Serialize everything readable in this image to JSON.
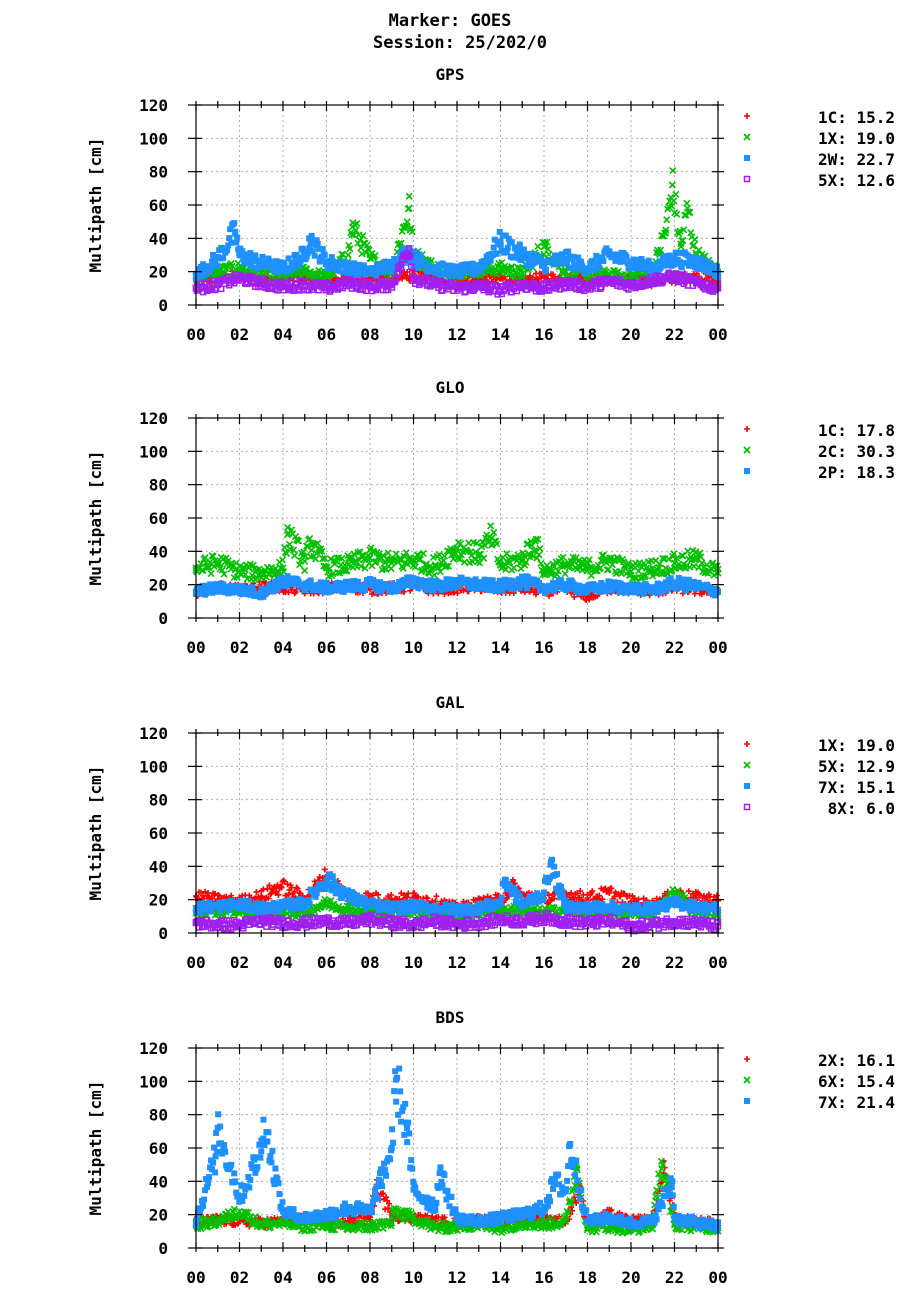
{
  "header": {
    "title": "Marker: GOES",
    "subtitle": "Session: 25/202/0"
  },
  "colors": {
    "red": "#ff0000",
    "green": "#00c000",
    "blue": "#1e90ff",
    "purple": "#a020f0",
    "grid": "#b0b0b0"
  },
  "chart_data": [
    {
      "type": "scatter",
      "title": "GPS",
      "ylabel": "Multipath [cm]",
      "ylim": [
        0,
        120
      ],
      "yticks": [
        "0",
        "20",
        "40",
        "60",
        "80",
        "100",
        "120"
      ],
      "xticks": [
        "00",
        "02",
        "04",
        "06",
        "08",
        "10",
        "12",
        "14",
        "16",
        "18",
        "20",
        "22",
        "00"
      ],
      "grid": true,
      "legend_position": "right",
      "series": [
        {
          "name": "1C",
          "value": "15.2",
          "color": "red",
          "marker": "+",
          "x": [
            0,
            1,
            2,
            3,
            4,
            5,
            6,
            7,
            8,
            9,
            10,
            11,
            12,
            13,
            14,
            15,
            16,
            17,
            18,
            19,
            20,
            21,
            22,
            23,
            24
          ],
          "y": [
            14,
            16,
            18,
            15,
            16,
            17,
            15,
            16,
            17,
            16,
            18,
            16,
            15,
            15,
            16,
            14,
            17,
            15,
            16,
            15,
            16,
            14,
            16,
            17,
            14
          ]
        },
        {
          "name": "1X",
          "value": "19.0",
          "color": "green",
          "marker": "x",
          "x": [
            0,
            1,
            2,
            3,
            4,
            5,
            6,
            7,
            7.2,
            8,
            9,
            9.8,
            10,
            11,
            12,
            13,
            14,
            15,
            16,
            17,
            18,
            19,
            20,
            21,
            21.6,
            21.9,
            22.3,
            22.6,
            23,
            24
          ],
          "y": [
            17,
            20,
            22,
            19,
            18,
            20,
            17,
            30,
            47,
            28,
            20,
            58,
            30,
            22,
            20,
            21,
            22,
            19,
            35,
            20,
            19,
            18,
            17,
            20,
            45,
            72,
            35,
            58,
            30,
            19
          ]
        },
        {
          "name": "2W",
          "value": "22.7",
          "color": "blue",
          "marker": "square",
          "x": [
            0,
            1,
            1.8,
            2,
            3,
            4,
            5,
            5.2,
            6,
            7,
            8,
            9,
            9.8,
            10,
            11,
            12,
            13,
            14,
            15,
            16,
            17,
            18,
            19,
            20,
            21,
            22,
            23,
            24
          ],
          "y": [
            18,
            28,
            44,
            30,
            25,
            22,
            30,
            40,
            26,
            22,
            20,
            24,
            32,
            28,
            22,
            20,
            22,
            38,
            30,
            24,
            28,
            22,
            30,
            26,
            22,
            28,
            26,
            20
          ]
        },
        {
          "name": "5X",
          "value": "12.6",
          "color": "purple",
          "marker": "open-square",
          "x": [
            0,
            1,
            2,
            3,
            4,
            5,
            6,
            7,
            8,
            9,
            9.8,
            10,
            11,
            12,
            13,
            14,
            15,
            16,
            17,
            18,
            19,
            20,
            21,
            22,
            23,
            24
          ],
          "y": [
            10,
            12,
            16,
            13,
            11,
            12,
            10,
            13,
            11,
            12,
            34,
            16,
            12,
            10,
            11,
            9,
            12,
            10,
            13,
            11,
            14,
            12,
            15,
            17,
            13,
            10
          ]
        }
      ]
    },
    {
      "type": "scatter",
      "title": "GLO",
      "ylabel": "Multipath [cm]",
      "ylim": [
        0,
        120
      ],
      "yticks": [
        "0",
        "20",
        "40",
        "60",
        "80",
        "100",
        "120"
      ],
      "xticks": [
        "00",
        "02",
        "04",
        "06",
        "08",
        "10",
        "12",
        "14",
        "16",
        "18",
        "20",
        "22",
        "00"
      ],
      "grid": true,
      "legend_position": "right",
      "series": [
        {
          "name": "1C",
          "value": "17.8",
          "color": "red",
          "marker": "+",
          "x": [
            0,
            1,
            2,
            3,
            4,
            5,
            6,
            7,
            8,
            9,
            10,
            11,
            12,
            13,
            14,
            15,
            16,
            17,
            18,
            19,
            20,
            21,
            22,
            23,
            24
          ],
          "y": [
            16,
            18,
            17,
            19,
            18,
            17,
            18,
            19,
            17,
            18,
            19,
            17,
            18,
            19,
            17,
            18,
            16,
            17,
            13,
            18,
            17,
            16,
            18,
            17,
            16
          ]
        },
        {
          "name": "2C",
          "value": "30.3",
          "color": "green",
          "marker": "x",
          "x": [
            0,
            1,
            2,
            3,
            4,
            4.2,
            5,
            5.3,
            6,
            7,
            8,
            9,
            10,
            11,
            12,
            13,
            13.6,
            14,
            15,
            15.6,
            16,
            17,
            18,
            19,
            20,
            21,
            22,
            23,
            24
          ],
          "y": [
            30,
            33,
            28,
            27,
            30,
            50,
            34,
            45,
            30,
            32,
            36,
            33,
            35,
            31,
            42,
            38,
            48,
            32,
            35,
            46,
            28,
            32,
            30,
            34,
            28,
            30,
            33,
            35,
            27
          ]
        },
        {
          "name": "2P",
          "value": "18.3",
          "color": "blue",
          "marker": "square",
          "x": [
            0,
            1,
            2,
            3,
            4,
            5,
            6,
            7,
            8,
            9,
            10,
            11,
            12,
            13,
            14,
            15,
            16,
            17,
            18,
            19,
            20,
            21,
            22,
            23,
            24
          ],
          "y": [
            16,
            18,
            17,
            15,
            22,
            20,
            18,
            19,
            20,
            18,
            22,
            19,
            21,
            20,
            19,
            22,
            18,
            20,
            17,
            19,
            18,
            17,
            21,
            19,
            16
          ]
        }
      ]
    },
    {
      "type": "scatter",
      "title": "GAL",
      "ylabel": "Multipath [cm]",
      "ylim": [
        0,
        120
      ],
      "yticks": [
        "0",
        "20",
        "40",
        "60",
        "80",
        "100",
        "120"
      ],
      "xticks": [
        "00",
        "02",
        "04",
        "06",
        "08",
        "10",
        "12",
        "14",
        "16",
        "18",
        "20",
        "22",
        "00"
      ],
      "grid": true,
      "legend_position": "right",
      "series": [
        {
          "name": "1X",
          "value": "19.0",
          "color": "red",
          "marker": "+",
          "x": [
            0,
            1,
            2,
            3,
            3.9,
            5,
            6,
            7,
            8,
            9,
            10,
            11,
            12,
            13,
            14,
            14.6,
            15,
            16,
            17,
            18,
            19,
            20,
            21,
            22,
            23,
            24
          ],
          "y": [
            22,
            20,
            19,
            22,
            28,
            21,
            34,
            22,
            21,
            20,
            21,
            19,
            15,
            18,
            20,
            28,
            22,
            21,
            23,
            21,
            24,
            19,
            17,
            23,
            21,
            20
          ]
        },
        {
          "name": "5X",
          "value": "12.9",
          "color": "green",
          "marker": "x",
          "x": [
            0,
            1,
            2,
            3,
            4,
            5,
            6,
            7,
            8,
            9,
            10,
            11,
            12,
            13,
            14,
            15,
            16,
            17,
            18,
            19,
            20,
            21,
            22,
            23,
            24
          ],
          "y": [
            12,
            13,
            14,
            12,
            13,
            12,
            18,
            14,
            13,
            12,
            14,
            12,
            11,
            13,
            14,
            13,
            12,
            14,
            13,
            12,
            13,
            11,
            24,
            13,
            12
          ]
        },
        {
          "name": "7X",
          "value": "15.1",
          "color": "blue",
          "marker": "square",
          "x": [
            0,
            1,
            2,
            3,
            4,
            5,
            6,
            7,
            8,
            9,
            10,
            11,
            12,
            13,
            14,
            14.2,
            15,
            16,
            16.3,
            17,
            18,
            19,
            20,
            21,
            22,
            23,
            24
          ],
          "y": [
            15,
            16,
            17,
            15,
            16,
            18,
            32,
            22,
            17,
            15,
            16,
            15,
            14,
            15,
            18,
            32,
            17,
            24,
            41,
            16,
            15,
            16,
            14,
            15,
            18,
            16,
            14
          ]
        },
        {
          "name": "8X",
          "value": "6.0",
          "color": "purple",
          "marker": "open-square",
          "x": [
            0,
            1,
            2,
            3,
            4,
            5,
            6,
            7,
            8,
            9,
            10,
            11,
            12,
            13,
            14,
            15,
            16,
            17,
            18,
            19,
            20,
            21,
            22,
            23,
            24
          ],
          "y": [
            6,
            5,
            5,
            7,
            6,
            6,
            7,
            6,
            8,
            6,
            5,
            7,
            5,
            6,
            8,
            7,
            9,
            7,
            6,
            7,
            4,
            5,
            7,
            6,
            4
          ]
        }
      ]
    },
    {
      "type": "scatter",
      "title": "BDS",
      "ylabel": "Multipath [cm]",
      "ylim": [
        0,
        120
      ],
      "yticks": [
        "0",
        "20",
        "40",
        "60",
        "80",
        "100",
        "120"
      ],
      "xticks": [
        "00",
        "02",
        "04",
        "06",
        "08",
        "10",
        "12",
        "14",
        "16",
        "18",
        "20",
        "22",
        "00"
      ],
      "grid": true,
      "legend_position": "right",
      "series": [
        {
          "name": "2X",
          "value": "16.1",
          "color": "red",
          "marker": "+",
          "x": [
            0,
            1,
            2,
            3,
            4,
            5,
            6,
            7,
            8,
            8.3,
            9,
            10,
            11,
            12,
            13,
            14,
            15,
            16,
            17,
            17.6,
            18,
            19,
            20,
            21,
            21.5,
            21.8,
            22,
            23,
            24
          ],
          "y": [
            15,
            17,
            16,
            15,
            16,
            17,
            15,
            16,
            17,
            38,
            20,
            18,
            16,
            15,
            17,
            16,
            18,
            17,
            16,
            35,
            15,
            20,
            16,
            17,
            45,
            33,
            17,
            16,
            14
          ]
        },
        {
          "name": "6X",
          "value": "15.4",
          "color": "green",
          "marker": "x",
          "x": [
            0,
            1,
            2,
            3,
            4,
            5,
            6,
            7,
            8,
            9,
            9.1,
            10,
            11,
            12,
            13,
            14,
            15,
            16,
            17,
            17.5,
            18,
            19,
            20,
            21,
            21.4,
            22,
            23,
            24
          ],
          "y": [
            14,
            16,
            22,
            14,
            15,
            13,
            14,
            12,
            13,
            15,
            22,
            18,
            12,
            13,
            14,
            12,
            15,
            14,
            16,
            48,
            12,
            13,
            11,
            14,
            52,
            14,
            13,
            12
          ]
        },
        {
          "name": "7X",
          "value": "21.4",
          "color": "blue",
          "marker": "square",
          "x": [
            0,
            0.9,
            1,
            1.8,
            2,
            3,
            3.1,
            4,
            5,
            6,
            7,
            8,
            8.5,
            9,
            9.2,
            9.7,
            10,
            11,
            11.2,
            12,
            13,
            14,
            15,
            16,
            16.5,
            17,
            17.2,
            18,
            19,
            20,
            21,
            21.9,
            22,
            23,
            24
          ],
          "y": [
            16,
            55,
            72,
            40,
            30,
            58,
            77,
            22,
            18,
            20,
            24,
            22,
            40,
            60,
            101,
            72,
            35,
            25,
            45,
            18,
            16,
            18,
            20,
            24,
            40,
            34,
            62,
            16,
            18,
            15,
            16,
            40,
            18,
            15,
            13
          ]
        }
      ]
    }
  ]
}
